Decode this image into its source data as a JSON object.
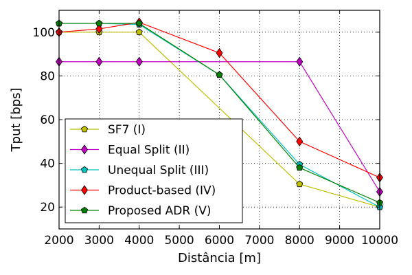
{
  "chart_data": {
    "type": "line",
    "title": "",
    "xlabel": "Distância [m]",
    "ylabel": "Tput [bps]",
    "xlim": [
      2000,
      10000
    ],
    "ylim": [
      10,
      110
    ],
    "xticks": [
      2000,
      3000,
      4000,
      5000,
      6000,
      7000,
      8000,
      9000,
      10000
    ],
    "yticks": [
      20,
      40,
      60,
      80,
      100
    ],
    "grid": true,
    "legend_position": "lower-left",
    "series": [
      {
        "name": "SF7 (I)",
        "color": "#bfbf00",
        "marker": "pentagon",
        "x": [
          2000,
          3000,
          4000,
          8000,
          10000
        ],
        "y": [
          100,
          100,
          100,
          30.5,
          20
        ]
      },
      {
        "name": "Equal Split (II)",
        "color": "#bf00bf",
        "marker": "diamond",
        "x": [
          2000,
          3000,
          4000,
          8000,
          10000
        ],
        "y": [
          86.5,
          86.5,
          86.5,
          86.5,
          27
        ]
      },
      {
        "name": "Unequal Split (III)",
        "color": "#00bfbf",
        "marker": "pentagon",
        "x": [
          2000,
          3000,
          4000,
          6000,
          8000,
          10000
        ],
        "y": [
          104,
          104,
          103.5,
          80.5,
          39.5,
          20
        ]
      },
      {
        "name": "Product-based (IV)",
        "color": "#ff0000",
        "marker": "diamond",
        "x": [
          2000,
          3000,
          4000,
          6000,
          8000,
          10000
        ],
        "y": [
          100,
          101.5,
          104.5,
          90.5,
          50,
          33.5
        ]
      },
      {
        "name": "Proposed ADR (V)",
        "color": "#008000",
        "marker": "pentagon",
        "x": [
          2000,
          3000,
          4000,
          6000,
          8000,
          10000
        ],
        "y": [
          104,
          104,
          104,
          80.5,
          38,
          22
        ]
      }
    ]
  }
}
